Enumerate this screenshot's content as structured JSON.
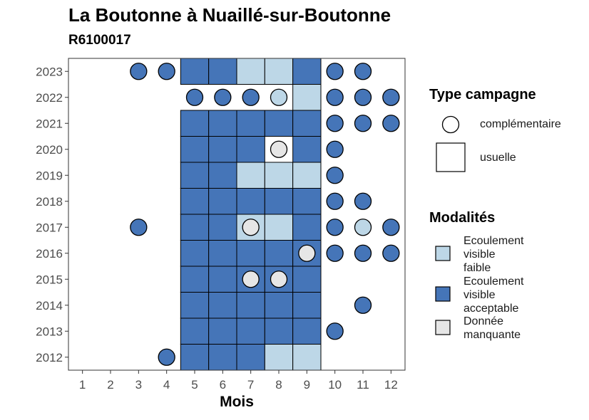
{
  "chart_data": {
    "type": "heatmap",
    "title": "La Boutonne à Nuaillé-sur-Boutonne",
    "subtitle": "R6100017",
    "xlabel": "Mois",
    "ylabel": "",
    "x_ticks": [
      "1",
      "2",
      "3",
      "4",
      "5",
      "6",
      "7",
      "8",
      "9",
      "10",
      "11",
      "12"
    ],
    "y_ticks": [
      "2012",
      "2013",
      "2014",
      "2015",
      "2016",
      "2017",
      "2018",
      "2019",
      "2020",
      "2021",
      "2022",
      "2023"
    ],
    "legend_type": {
      "title": "Type campagne",
      "items": [
        "complémentaire",
        "usuelle"
      ]
    },
    "legend_modalites": {
      "title": "Modalités",
      "items": [
        {
          "label": "Ecoulement visible faible",
          "lines": [
            "Ecoulement",
            "visible",
            "faible"
          ],
          "color": "#bdd7e7"
        },
        {
          "label": "Ecoulement visible acceptable",
          "lines": [
            "Ecoulement",
            "visible",
            "acceptable"
          ],
          "color": "#4575b8"
        },
        {
          "label": "Donnée manquante",
          "lines": [
            "Donnée",
            "manquante"
          ],
          "color": "#e6e6e6"
        }
      ]
    },
    "colors": {
      "faible": "#bdd7e7",
      "acceptable": "#4575b8",
      "manquante": "#e6e6e6"
    },
    "series": [
      {
        "name": "usuelle",
        "points": [
          {
            "year": 2023,
            "month": 5,
            "value": "acceptable"
          },
          {
            "year": 2023,
            "month": 6,
            "value": "acceptable"
          },
          {
            "year": 2023,
            "month": 7,
            "value": "faible"
          },
          {
            "year": 2023,
            "month": 8,
            "value": "faible"
          },
          {
            "year": 2023,
            "month": 9,
            "value": "acceptable"
          },
          {
            "year": 2022,
            "month": 9,
            "value": "faible"
          },
          {
            "year": 2021,
            "month": 5,
            "value": "acceptable"
          },
          {
            "year": 2021,
            "month": 6,
            "value": "acceptable"
          },
          {
            "year": 2021,
            "month": 7,
            "value": "acceptable"
          },
          {
            "year": 2021,
            "month": 8,
            "value": "acceptable"
          },
          {
            "year": 2021,
            "month": 9,
            "value": "acceptable"
          },
          {
            "year": 2020,
            "month": 5,
            "value": "acceptable"
          },
          {
            "year": 2020,
            "month": 6,
            "value": "acceptable"
          },
          {
            "year": 2020,
            "month": 7,
            "value": "acceptable"
          },
          {
            "year": 2020,
            "month": 9,
            "value": "acceptable"
          },
          {
            "year": 2019,
            "month": 5,
            "value": "acceptable"
          },
          {
            "year": 2019,
            "month": 6,
            "value": "acceptable"
          },
          {
            "year": 2019,
            "month": 7,
            "value": "faible"
          },
          {
            "year": 2019,
            "month": 8,
            "value": "faible"
          },
          {
            "year": 2019,
            "month": 9,
            "value": "faible"
          },
          {
            "year": 2018,
            "month": 5,
            "value": "acceptable"
          },
          {
            "year": 2018,
            "month": 6,
            "value": "acceptable"
          },
          {
            "year": 2018,
            "month": 7,
            "value": "acceptable"
          },
          {
            "year": 2018,
            "month": 8,
            "value": "acceptable"
          },
          {
            "year": 2018,
            "month": 9,
            "value": "acceptable"
          },
          {
            "year": 2017,
            "month": 5,
            "value": "acceptable"
          },
          {
            "year": 2017,
            "month": 6,
            "value": "acceptable"
          },
          {
            "year": 2017,
            "month": 7,
            "value": "faible"
          },
          {
            "year": 2017,
            "month": 8,
            "value": "faible"
          },
          {
            "year": 2017,
            "month": 9,
            "value": "acceptable"
          },
          {
            "year": 2016,
            "month": 5,
            "value": "acceptable"
          },
          {
            "year": 2016,
            "month": 6,
            "value": "acceptable"
          },
          {
            "year": 2016,
            "month": 7,
            "value": "acceptable"
          },
          {
            "year": 2016,
            "month": 8,
            "value": "acceptable"
          },
          {
            "year": 2016,
            "month": 9,
            "value": "acceptable"
          },
          {
            "year": 2015,
            "month": 5,
            "value": "acceptable"
          },
          {
            "year": 2015,
            "month": 6,
            "value": "acceptable"
          },
          {
            "year": 2015,
            "month": 7,
            "value": "acceptable"
          },
          {
            "year": 2015,
            "month": 8,
            "value": "acceptable"
          },
          {
            "year": 2015,
            "month": 9,
            "value": "acceptable"
          },
          {
            "year": 2014,
            "month": 5,
            "value": "acceptable"
          },
          {
            "year": 2014,
            "month": 6,
            "value": "acceptable"
          },
          {
            "year": 2014,
            "month": 7,
            "value": "acceptable"
          },
          {
            "year": 2014,
            "month": 8,
            "value": "acceptable"
          },
          {
            "year": 2014,
            "month": 9,
            "value": "acceptable"
          },
          {
            "year": 2013,
            "month": 5,
            "value": "acceptable"
          },
          {
            "year": 2013,
            "month": 6,
            "value": "acceptable"
          },
          {
            "year": 2013,
            "month": 7,
            "value": "acceptable"
          },
          {
            "year": 2013,
            "month": 8,
            "value": "acceptable"
          },
          {
            "year": 2013,
            "month": 9,
            "value": "acceptable"
          },
          {
            "year": 2012,
            "month": 5,
            "value": "acceptable"
          },
          {
            "year": 2012,
            "month": 6,
            "value": "acceptable"
          },
          {
            "year": 2012,
            "month": 7,
            "value": "acceptable"
          },
          {
            "year": 2012,
            "month": 8,
            "value": "faible"
          },
          {
            "year": 2012,
            "month": 9,
            "value": "faible"
          }
        ]
      },
      {
        "name": "complémentaire",
        "points": [
          {
            "year": 2023,
            "month": 3,
            "value": "acceptable"
          },
          {
            "year": 2023,
            "month": 4,
            "value": "acceptable"
          },
          {
            "year": 2023,
            "month": 10,
            "value": "acceptable"
          },
          {
            "year": 2023,
            "month": 11,
            "value": "acceptable"
          },
          {
            "year": 2022,
            "month": 5,
            "value": "acceptable"
          },
          {
            "year": 2022,
            "month": 6,
            "value": "acceptable"
          },
          {
            "year": 2022,
            "month": 7,
            "value": "acceptable"
          },
          {
            "year": 2022,
            "month": 8,
            "value": "faible"
          },
          {
            "year": 2022,
            "month": 10,
            "value": "acceptable"
          },
          {
            "year": 2022,
            "month": 11,
            "value": "acceptable"
          },
          {
            "year": 2022,
            "month": 12,
            "value": "acceptable"
          },
          {
            "year": 2021,
            "month": 10,
            "value": "acceptable"
          },
          {
            "year": 2021,
            "month": 11,
            "value": "acceptable"
          },
          {
            "year": 2021,
            "month": 12,
            "value": "acceptable"
          },
          {
            "year": 2020,
            "month": 8,
            "value": "manquante"
          },
          {
            "year": 2020,
            "month": 10,
            "value": "acceptable"
          },
          {
            "year": 2019,
            "month": 10,
            "value": "acceptable"
          },
          {
            "year": 2018,
            "month": 10,
            "value": "acceptable"
          },
          {
            "year": 2018,
            "month": 11,
            "value": "acceptable"
          },
          {
            "year": 2017,
            "month": 3,
            "value": "acceptable"
          },
          {
            "year": 2017,
            "month": 7,
            "value": "manquante"
          },
          {
            "year": 2017,
            "month": 10,
            "value": "acceptable"
          },
          {
            "year": 2017,
            "month": 11,
            "value": "faible"
          },
          {
            "year": 2017,
            "month": 12,
            "value": "acceptable"
          },
          {
            "year": 2016,
            "month": 9,
            "value": "manquante"
          },
          {
            "year": 2016,
            "month": 10,
            "value": "acceptable"
          },
          {
            "year": 2016,
            "month": 11,
            "value": "acceptable"
          },
          {
            "year": 2016,
            "month": 12,
            "value": "acceptable"
          },
          {
            "year": 2015,
            "month": 7,
            "value": "manquante"
          },
          {
            "year": 2015,
            "month": 8,
            "value": "manquante"
          },
          {
            "year": 2014,
            "month": 11,
            "value": "acceptable"
          },
          {
            "year": 2013,
            "month": 10,
            "value": "acceptable"
          },
          {
            "year": 2012,
            "month": 4,
            "value": "acceptable"
          }
        ]
      }
    ]
  }
}
